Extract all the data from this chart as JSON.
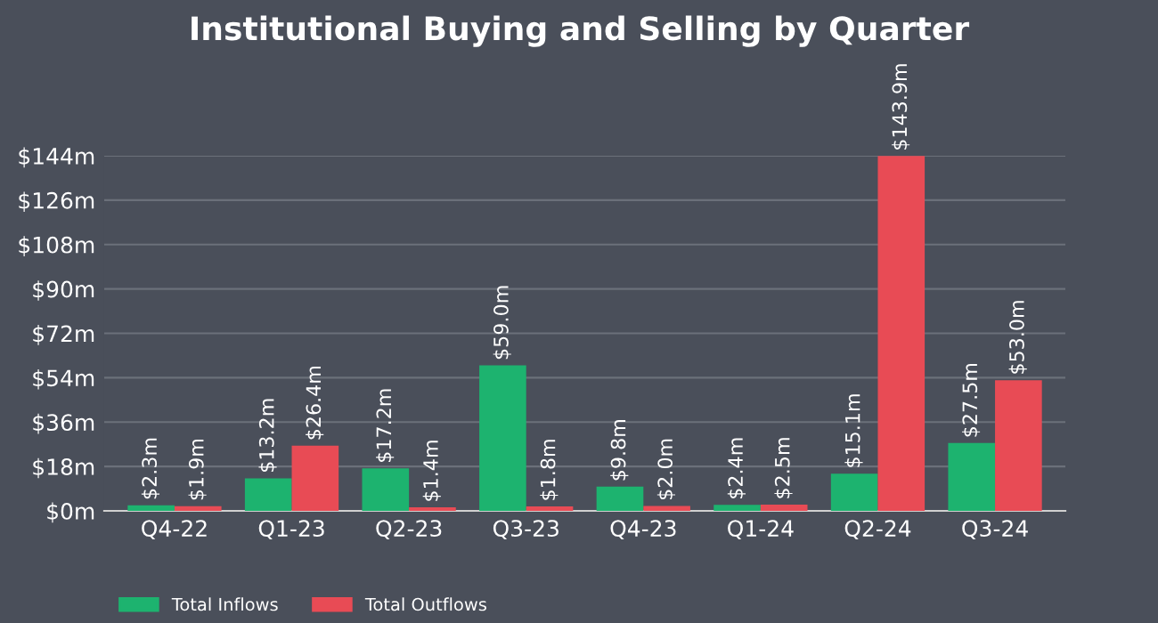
{
  "chart_data": {
    "type": "bar",
    "title": "Institutional Buying and Selling by Quarter",
    "categories": [
      "Q4-22",
      "Q1-23",
      "Q2-23",
      "Q3-23",
      "Q4-23",
      "Q1-24",
      "Q2-24",
      "Q3-24"
    ],
    "series": [
      {
        "name": "Total Inflows",
        "color": "#1db36f",
        "values": [
          2.3,
          13.2,
          17.2,
          59.0,
          9.8,
          2.4,
          15.1,
          27.5
        ],
        "value_labels": [
          "$2.3m",
          "$13.2m",
          "$17.2m",
          "$59.0m",
          "$9.8m",
          "$2.4m",
          "$15.1m",
          "$27.5m"
        ]
      },
      {
        "name": "Total Outflows",
        "color": "#e84b55",
        "values": [
          1.9,
          26.4,
          1.4,
          1.8,
          2.0,
          2.5,
          143.9,
          53.0
        ],
        "value_labels": [
          "$1.9m",
          "$26.4m",
          "$1.4m",
          "$1.8m",
          "$2.0m",
          "$2.5m",
          "$143.9m",
          "$53.0m"
        ]
      }
    ],
    "ylim": [
      0,
      144
    ],
    "yticks": [
      {
        "value": 0,
        "label": "$0m"
      },
      {
        "value": 18,
        "label": "$18m"
      },
      {
        "value": 36,
        "label": "$36m"
      },
      {
        "value": 54,
        "label": "$54m"
      },
      {
        "value": 72,
        "label": "$72m"
      },
      {
        "value": 90,
        "label": "$90m"
      },
      {
        "value": 108,
        "label": "$108m"
      },
      {
        "value": 126,
        "label": "$126m"
      },
      {
        "value": 144,
        "label": "$144m"
      }
    ],
    "grid": "y",
    "legend": "bottom left"
  }
}
